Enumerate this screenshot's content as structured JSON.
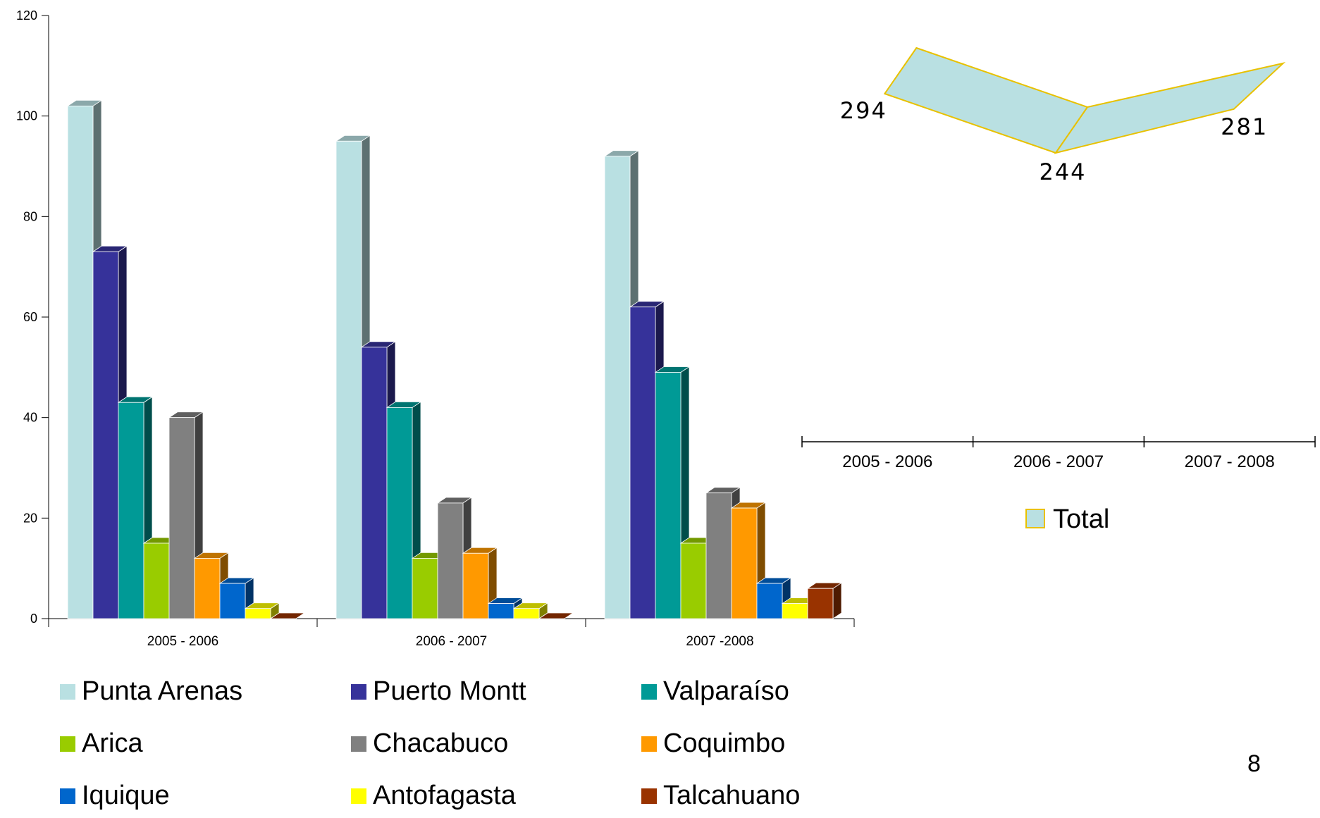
{
  "page_number": "8",
  "colors": {
    "Punta Arenas": "#b9e0e2",
    "Puerto Montt": "#36329a",
    "Valparaíso": "#009a96",
    "Arica": "#99cc00",
    "Chacabuco": "#808080",
    "Coquimbo": "#ff9900",
    "Iquique": "#0066cc",
    "Antofagasta": "#ffff00",
    "Talcahuano": "#993300",
    "total_fill": "#b9e0e2",
    "total_edge": "#e8c100"
  },
  "chart_data": [
    {
      "type": "bar",
      "categories": [
        "2005 - 2006",
        "2006 - 2007",
        "2007 -2008"
      ],
      "ylim": [
        0,
        120
      ],
      "yticks": [
        0,
        20,
        40,
        60,
        80,
        100,
        120
      ],
      "legend_position": "bottom",
      "series": [
        {
          "name": "Punta Arenas",
          "values": [
            102,
            95,
            92
          ]
        },
        {
          "name": "Puerto Montt",
          "values": [
            73,
            54,
            62
          ]
        },
        {
          "name": "Valparaíso",
          "values": [
            43,
            42,
            49
          ]
        },
        {
          "name": "Arica",
          "values": [
            15,
            12,
            15
          ]
        },
        {
          "name": "Chacabuco",
          "values": [
            40,
            23,
            25
          ]
        },
        {
          "name": "Coquimbo",
          "values": [
            12,
            13,
            22
          ]
        },
        {
          "name": "Iquique",
          "values": [
            7,
            3,
            7
          ]
        },
        {
          "name": "Antofagasta",
          "values": [
            2,
            2,
            3
          ]
        },
        {
          "name": "Talcahuano",
          "values": [
            0,
            0,
            6
          ]
        }
      ]
    },
    {
      "type": "line",
      "categories": [
        "2005 - 2006",
        "2006 - 2007",
        "2007 - 2008"
      ],
      "legend_position": "bottom",
      "series": [
        {
          "name": "Total",
          "values": [
            294,
            244,
            281
          ],
          "labels": [
            "294",
            "244",
            "281"
          ]
        }
      ]
    }
  ]
}
